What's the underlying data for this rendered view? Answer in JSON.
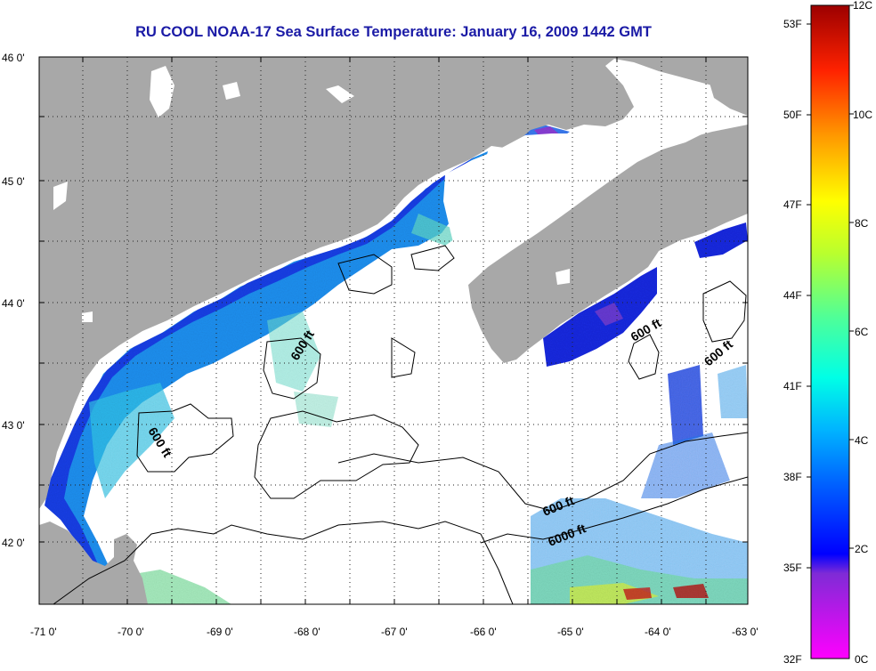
{
  "title": "RU COOL  NOAA-17  Sea Surface Temperature:  January 16, 2009 1442 GMT",
  "longitude_ticks": [
    "-71 0'",
    "-70 0'",
    "-69 0'",
    "-68 0'",
    "-67 0'",
    "-66 0'",
    "-65 0'",
    "-64 0'",
    "-63 0'"
  ],
  "latitude_ticks": [
    "46 0'",
    "45 0'",
    "44 0'",
    "43 0'",
    "42 0'"
  ],
  "contour_labels": [
    "600 ft",
    "600 ft",
    "600 ft",
    "600 ft",
    "600 ft",
    "6000 ft"
  ],
  "colorbar": {
    "fahrenheit_labels": [
      "53F",
      "50F",
      "47F",
      "44F",
      "41F",
      "38F",
      "35F",
      "32F"
    ],
    "celsius_labels": [
      "12C",
      "10C",
      "8C",
      "6C",
      "4C",
      "2C",
      "0C"
    ]
  },
  "colors": {
    "title": "#1a1aa6",
    "land": "#a8a8a8",
    "ocean_no_data": "#ffffff"
  }
}
